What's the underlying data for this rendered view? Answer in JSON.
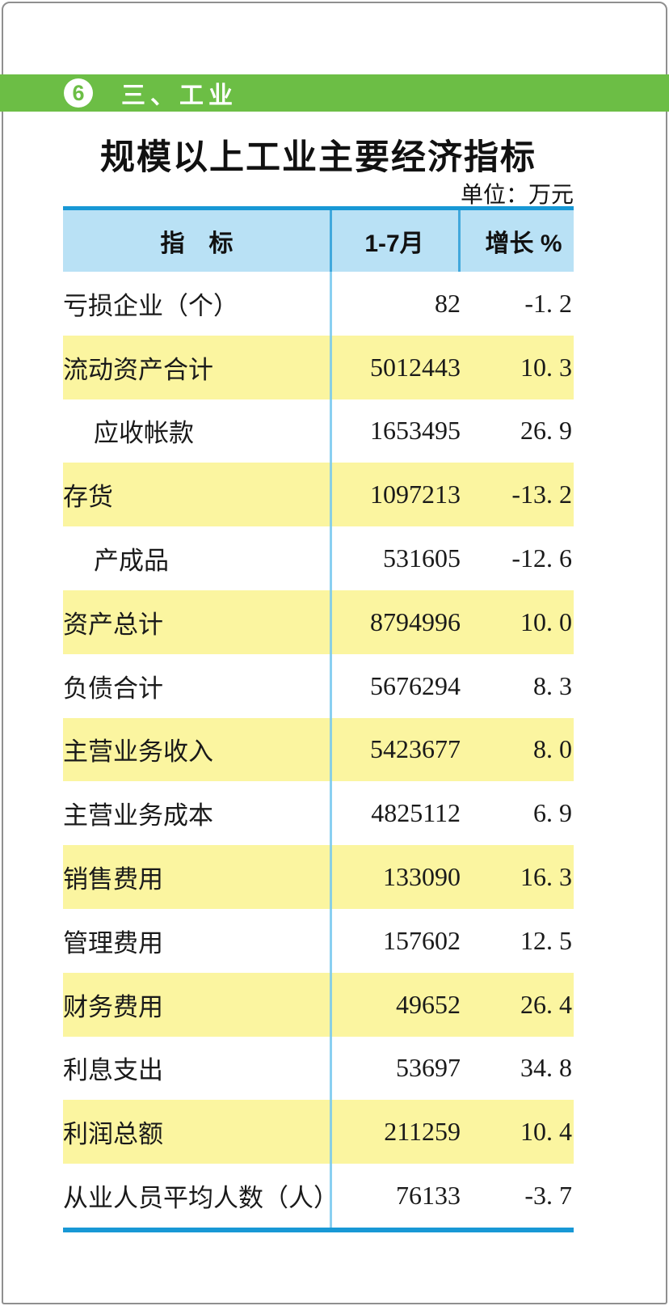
{
  "page": {
    "section_badge": "6",
    "section_title": "三、工业",
    "title": "规模以上工业主要经济指标",
    "unit_note": "单位：万元"
  },
  "table": {
    "header": {
      "indicator": "指　标",
      "period": "1-7月",
      "growth": "增长 %"
    },
    "rows": [
      {
        "indicator": "亏损企业（个）",
        "value": "82",
        "growth": "-1. 2",
        "highlight": false,
        "indent": false
      },
      {
        "indicator": "流动资产合计",
        "value": "5012443",
        "growth": "10. 3",
        "highlight": true,
        "indent": false
      },
      {
        "indicator": "应收帐款",
        "value": "1653495",
        "growth": "26. 9",
        "highlight": false,
        "indent": true
      },
      {
        "indicator": "存货",
        "value": "1097213",
        "growth": "-13. 2",
        "highlight": true,
        "indent": false
      },
      {
        "indicator": "产成品",
        "value": "531605",
        "growth": "-12. 6",
        "highlight": false,
        "indent": true
      },
      {
        "indicator": "资产总计",
        "value": "8794996",
        "growth": "10. 0",
        "highlight": true,
        "indent": false
      },
      {
        "indicator": "负债合计",
        "value": "5676294",
        "growth": "8. 3",
        "highlight": false,
        "indent": false
      },
      {
        "indicator": "主营业务收入",
        "value": "5423677",
        "growth": "8. 0",
        "highlight": true,
        "indent": false
      },
      {
        "indicator": "主营业务成本",
        "value": "4825112",
        "growth": "6. 9",
        "highlight": false,
        "indent": false
      },
      {
        "indicator": "销售费用",
        "value": "133090",
        "growth": "16. 3",
        "highlight": true,
        "indent": false
      },
      {
        "indicator": "管理费用",
        "value": "157602",
        "growth": "12. 5",
        "highlight": false,
        "indent": false
      },
      {
        "indicator": "财务费用",
        "value": "49652",
        "growth": "26. 4",
        "highlight": true,
        "indent": false
      },
      {
        "indicator": "利息支出",
        "value": "53697",
        "growth": "34. 8",
        "highlight": false,
        "indent": false
      },
      {
        "indicator": "利润总额",
        "value": "211259",
        "growth": "10. 4",
        "highlight": true,
        "indent": false
      },
      {
        "indicator": "从业人员平均人数（人）",
        "value": "76133",
        "growth": "-3. 7",
        "highlight": false,
        "indent": false
      }
    ]
  },
  "colors": {
    "accent_green": "#6CBE45",
    "header_blue": "#B9E1F5",
    "rule_blue": "#1898D5",
    "divider_blue": "#41A8DC",
    "body_column_line": "#76C8EF",
    "highlight_yellow": "#FBF5A0"
  }
}
